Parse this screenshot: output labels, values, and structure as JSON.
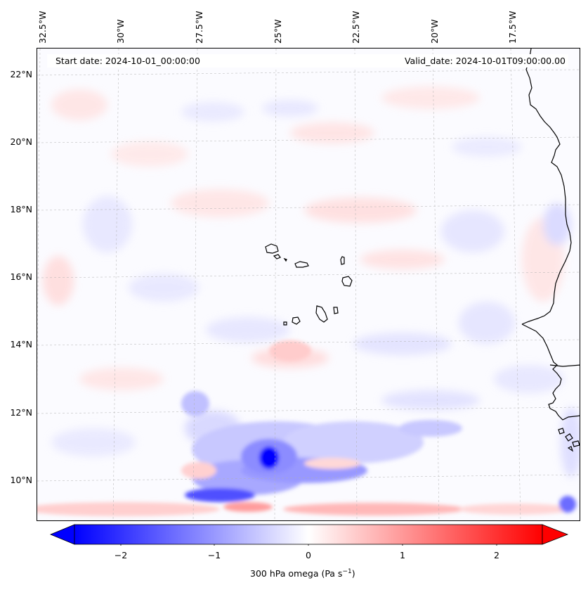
{
  "map": {
    "info": {
      "start_date": "Start date: 2024-10-01_00:00:00",
      "valid_date": "Valid_date: 2024-10-01T09:00:00.00"
    },
    "longitude_labels": [
      "32.5°W",
      "30°W",
      "27.5°W",
      "25°W",
      "22.5°W",
      "20°W",
      "17.5°W"
    ],
    "latitude_labels": [
      "22°N",
      "20°N",
      "18°N",
      "16°N",
      "14°N",
      "12°N",
      "10°N"
    ],
    "extent": {
      "lon_min": -33.0,
      "lon_max": -15.6,
      "lat_min": 8.9,
      "lat_max": 22.8
    },
    "gridlines": true,
    "field": "300 hPa omega",
    "features": [
      "Cape Verde islands",
      "West African coastline (Senegal, Gambia, Guinea-Bissau)",
      "strong upward motion (negative omega) near 25.5°W 10.8°N"
    ]
  },
  "colorbar": {
    "label_prefix": "300 hPa omega (Pa s",
    "label_exp": "−1",
    "label_suffix": ")",
    "ticks": [
      "−2",
      "−1",
      "0",
      "1",
      "2"
    ],
    "tick_values": [
      -2,
      -1,
      0,
      1,
      2
    ],
    "range": [
      -2.5,
      2.5
    ],
    "colormap": "bwr",
    "extend": "both",
    "colors": {
      "negative": "#0000ff",
      "zero": "#ffffff",
      "positive": "#ff0000"
    }
  }
}
